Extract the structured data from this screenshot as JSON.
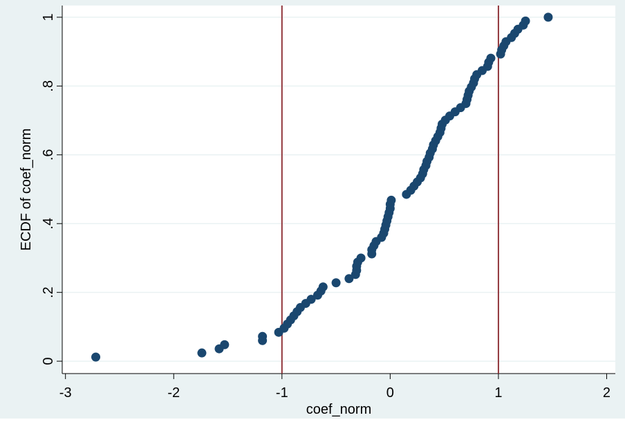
{
  "chart_data": {
    "type": "scatter",
    "x_label": "coef_norm",
    "y_label": "ECDF of coef_norm",
    "x": [
      -2.72,
      -1.74,
      -1.58,
      -1.53,
      -1.18,
      -1.18,
      -1.03,
      -0.98,
      -0.95,
      -0.92,
      -0.89,
      -0.86,
      -0.83,
      -0.78,
      -0.73,
      -0.67,
      -0.64,
      -0.62,
      -0.5,
      -0.38,
      -0.32,
      -0.31,
      -0.31,
      -0.3,
      -0.27,
      -0.17,
      -0.17,
      -0.15,
      -0.13,
      -0.08,
      -0.06,
      -0.05,
      -0.04,
      -0.03,
      -0.02,
      -0.01,
      0.0,
      0.0,
      0.01,
      0.15,
      0.19,
      0.22,
      0.25,
      0.28,
      0.3,
      0.31,
      0.33,
      0.34,
      0.36,
      0.37,
      0.39,
      0.4,
      0.42,
      0.44,
      0.46,
      0.47,
      0.48,
      0.51,
      0.55,
      0.6,
      0.65,
      0.7,
      0.71,
      0.72,
      0.73,
      0.75,
      0.77,
      0.78,
      0.8,
      0.85,
      0.9,
      0.91,
      0.93,
      1.02,
      1.03,
      1.05,
      1.07,
      1.12,
      1.15,
      1.18,
      1.23,
      1.25,
      1.46
    ],
    "values": [
      0.012,
      0.024,
      0.036,
      0.048,
      0.06,
      0.072,
      0.084,
      0.096,
      0.108,
      0.12,
      0.132,
      0.144,
      0.156,
      0.168,
      0.18,
      0.192,
      0.204,
      0.216,
      0.228,
      0.24,
      0.252,
      0.264,
      0.276,
      0.288,
      0.3,
      0.312,
      0.324,
      0.336,
      0.348,
      0.36,
      0.372,
      0.384,
      0.396,
      0.408,
      0.42,
      0.432,
      0.444,
      0.456,
      0.468,
      0.485,
      0.497,
      0.509,
      0.521,
      0.533,
      0.545,
      0.557,
      0.569,
      0.581,
      0.593,
      0.605,
      0.617,
      0.629,
      0.641,
      0.653,
      0.665,
      0.677,
      0.689,
      0.701,
      0.713,
      0.725,
      0.737,
      0.749,
      0.761,
      0.773,
      0.785,
      0.797,
      0.809,
      0.821,
      0.833,
      0.845,
      0.857,
      0.869,
      0.881,
      0.893,
      0.905,
      0.917,
      0.929,
      0.941,
      0.953,
      0.965,
      0.977,
      0.989,
      1.0
    ],
    "color": "#1a476f",
    "xlines": [
      -1,
      1
    ],
    "xline_color": "#90353b",
    "xlim": [
      -3.03,
      2.08
    ],
    "xticks": [
      -3,
      -2,
      -1,
      0,
      1,
      2
    ],
    "ylim": [
      -0.036,
      1.034
    ],
    "yticks": [
      0,
      {
        "value": 0.2,
        "label": ".2"
      },
      {
        "value": 0.4,
        "label": ".4"
      },
      {
        "value": 0.6,
        "label": ".6"
      },
      {
        "value": 0.8,
        "label": ".8"
      },
      1
    ],
    "grid": true
  }
}
